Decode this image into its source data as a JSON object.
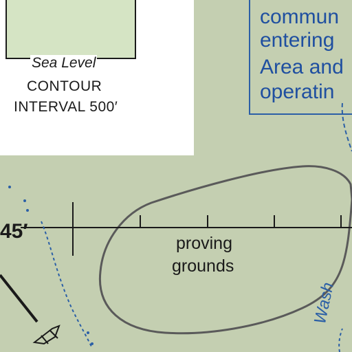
{
  "legend": {
    "sea_level": "Sea Level",
    "contour_line1": "CONTOUR",
    "contour_line2": "INTERVAL 500′"
  },
  "notice": {
    "lines": [
      "commun",
      "entering",
      "Area and",
      "operatin"
    ]
  },
  "proving_grounds": {
    "line1": "proving",
    "line2": "grounds"
  },
  "latitude_label": "45′",
  "wash_label": "Wash",
  "colors": {
    "land": "#c4cfb1",
    "legend_fill": "#d5e4c4",
    "notice_blue": "#1f4fa0",
    "water_blue": "#2b5fa6",
    "boundary_gray": "#5a5a5a"
  }
}
